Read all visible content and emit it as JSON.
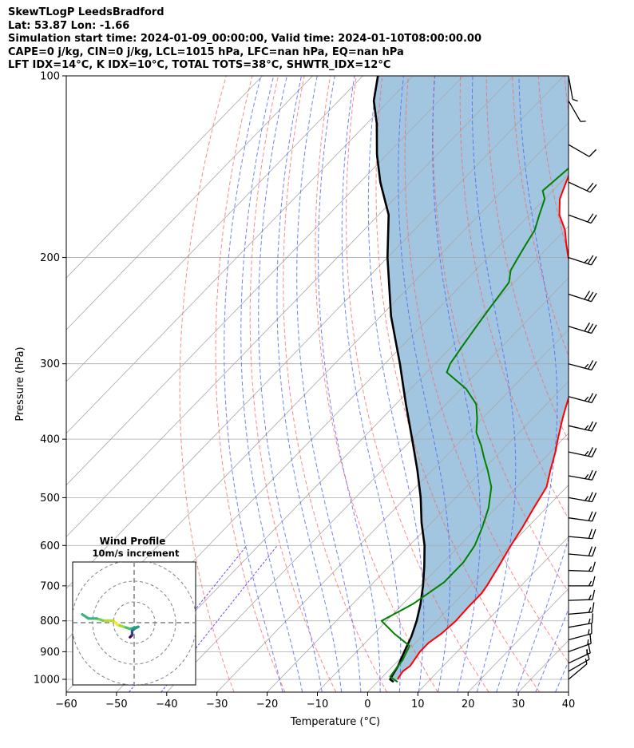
{
  "header": {
    "lines": [
      "SkewTLogP LeedsBradford",
      "Lat: 53.87   Lon: -1.66",
      "Simulation start time: 2024-01-09_00:00:00, Valid time: 2024-01-10T08:00:00.00",
      "CAPE=0 j/kg, CIN=0 j/kg, LCL=1015 hPa, LFC=nan hPa, EQ=nan hPa",
      "LFT IDX=14°C, K IDX=10°C, TOTAL TOTS=38°C, SHWTR_IDX=12°C"
    ]
  },
  "chart_data": {
    "type": "line",
    "subtype": "skew-T log-P",
    "xlabel": "Temperature (°C)",
    "ylabel": "Pressure (hPa)",
    "xlim": [
      -60,
      40
    ],
    "ylim": [
      1050,
      100
    ],
    "yscale": "log",
    "x_ticks": [
      -60,
      -50,
      -40,
      -30,
      -20,
      -10,
      0,
      10,
      20,
      30,
      40
    ],
    "y_ticks": [
      1000,
      900,
      800,
      700,
      600,
      500,
      400,
      300,
      200,
      100
    ],
    "grid": true,
    "colors": {
      "temperature": "#ff0000",
      "dewpoint": "#008000",
      "parcel": "#000000",
      "shade": "#a2c6e0",
      "isotherm": "#a8a8a8",
      "dry_adiabat": "#ff6060",
      "moist_adiabat": "#4b61ff",
      "mixing_ratio": "#7a3fff"
    },
    "series": [
      {
        "key": "temperature",
        "points": [
          [
            3.5,
            1000
          ],
          [
            3.3,
            990
          ],
          [
            3,
            970
          ],
          [
            3.4,
            950
          ],
          [
            2.6,
            900
          ],
          [
            2.6,
            870
          ],
          [
            3.4,
            840
          ],
          [
            3.8,
            800
          ],
          [
            3.6,
            760
          ],
          [
            3.6,
            720
          ],
          [
            3.2,
            700
          ],
          [
            1.8,
            650
          ],
          [
            0.2,
            600
          ],
          [
            -1,
            560
          ],
          [
            -2.5,
            520
          ],
          [
            -4,
            480
          ],
          [
            -6.5,
            450
          ],
          [
            -9,
            420
          ],
          [
            -11,
            400
          ],
          [
            -14,
            370
          ],
          [
            -15,
            360
          ],
          [
            -17,
            340
          ],
          [
            -19,
            320
          ],
          [
            -21,
            300
          ],
          [
            -25,
            280
          ],
          [
            -29,
            260
          ],
          [
            -32,
            245
          ],
          [
            -35,
            230
          ],
          [
            -39,
            215
          ],
          [
            -44,
            200
          ],
          [
            -47,
            190
          ],
          [
            -50,
            180
          ],
          [
            -54,
            170
          ],
          [
            -57,
            160
          ],
          [
            -59,
            150
          ],
          [
            -61,
            140
          ],
          [
            -61,
            130
          ],
          [
            -62,
            120
          ],
          [
            -63,
            115
          ],
          [
            -65,
            110
          ],
          [
            -68,
            105
          ],
          [
            -71,
            100
          ]
        ]
      },
      {
        "key": "dewpoint",
        "points": [
          [
            4,
            1010
          ],
          [
            1.5,
            990
          ],
          [
            1,
            950
          ],
          [
            0.8,
            930
          ],
          [
            -0.6,
            880
          ],
          [
            -6,
            840
          ],
          [
            -11,
            800
          ],
          [
            -8,
            750
          ],
          [
            -6,
            690
          ],
          [
            -6,
            660
          ],
          [
            -6,
            640
          ],
          [
            -7,
            600
          ],
          [
            -9,
            560
          ],
          [
            -11.5,
            520
          ],
          [
            -15,
            480
          ],
          [
            -19,
            450
          ],
          [
            -22,
            430
          ],
          [
            -25,
            410
          ],
          [
            -28.5,
            390
          ],
          [
            -31,
            370
          ],
          [
            -34,
            350
          ],
          [
            -39,
            330
          ],
          [
            -46,
            310
          ],
          [
            -47,
            300
          ],
          [
            -48,
            280
          ],
          [
            -49,
            260
          ],
          [
            -50,
            240
          ],
          [
            -51,
            220
          ],
          [
            -53,
            210
          ],
          [
            -54,
            200
          ],
          [
            -55,
            190
          ],
          [
            -56,
            180
          ],
          [
            -58,
            170
          ],
          [
            -60,
            160
          ],
          [
            -62,
            155
          ],
          [
            -61,
            140
          ],
          [
            -64,
            130
          ],
          [
            -68,
            120
          ],
          [
            -71,
            115
          ],
          [
            -73,
            110
          ],
          [
            -75,
            105
          ],
          [
            -78,
            100
          ]
        ]
      },
      {
        "key": "parcel",
        "points": [
          [
            3.2,
            1010
          ],
          [
            2,
            1000
          ],
          [
            1,
            950
          ],
          [
            -0.5,
            900
          ],
          [
            -2,
            850
          ],
          [
            -4,
            800
          ],
          [
            -6.5,
            750
          ],
          [
            -9.5,
            700
          ],
          [
            -13,
            650
          ],
          [
            -17,
            600
          ],
          [
            -22,
            550
          ],
          [
            -27,
            500
          ],
          [
            -33,
            450
          ],
          [
            -40,
            400
          ],
          [
            -48,
            350
          ],
          [
            -57,
            300
          ],
          [
            -68,
            250
          ],
          [
            -80,
            200
          ],
          [
            -88,
            170
          ],
          [
            -96,
            150
          ],
          [
            -102,
            135
          ],
          [
            -108,
            120
          ],
          [
            -113,
            110
          ],
          [
            -117,
            100
          ]
        ]
      }
    ],
    "wind_barbs": [
      {
        "p": 1000,
        "speed": 5,
        "dir": 230
      },
      {
        "p": 970,
        "speed": 10,
        "dir": 240
      },
      {
        "p": 940,
        "speed": 15,
        "dir": 245
      },
      {
        "p": 900,
        "speed": 15,
        "dir": 250
      },
      {
        "p": 860,
        "speed": 15,
        "dir": 255
      },
      {
        "p": 820,
        "speed": 15,
        "dir": 260
      },
      {
        "p": 780,
        "speed": 15,
        "dir": 265
      },
      {
        "p": 740,
        "speed": 15,
        "dir": 268
      },
      {
        "p": 700,
        "speed": 15,
        "dir": 270
      },
      {
        "p": 660,
        "speed": 15,
        "dir": 272
      },
      {
        "p": 620,
        "speed": 20,
        "dir": 275
      },
      {
        "p": 580,
        "speed": 20,
        "dir": 275
      },
      {
        "p": 540,
        "speed": 20,
        "dir": 278
      },
      {
        "p": 500,
        "speed": 25,
        "dir": 280
      },
      {
        "p": 460,
        "speed": 25,
        "dir": 280
      },
      {
        "p": 420,
        "speed": 25,
        "dir": 282
      },
      {
        "p": 380,
        "speed": 25,
        "dir": 283
      },
      {
        "p": 340,
        "speed": 25,
        "dir": 285
      },
      {
        "p": 300,
        "speed": 25,
        "dir": 285
      },
      {
        "p": 260,
        "speed": 30,
        "dir": 287
      },
      {
        "p": 230,
        "speed": 30,
        "dir": 288
      },
      {
        "p": 200,
        "speed": 25,
        "dir": 288
      },
      {
        "p": 170,
        "speed": 20,
        "dir": 290
      },
      {
        "p": 150,
        "speed": 20,
        "dir": 295
      },
      {
        "p": 130,
        "speed": 10,
        "dir": 300
      },
      {
        "p": 110,
        "speed": 5,
        "dir": 330
      },
      {
        "p": 100,
        "speed": 5,
        "dir": 350
      }
    ],
    "inset": {
      "title": "Wind Profile",
      "subtitle": "10m/s increment",
      "hodograph": [
        [
          -2,
          -7
        ],
        [
          -1,
          -6
        ],
        [
          -1,
          -4
        ],
        [
          0,
          -3
        ],
        [
          2,
          -2
        ],
        [
          -2,
          -3
        ],
        [
          -5,
          -2
        ],
        [
          -8,
          -1
        ],
        [
          -10,
          1
        ],
        [
          -15,
          1
        ],
        [
          -18,
          2
        ],
        [
          -22,
          2
        ],
        [
          -25,
          4
        ]
      ]
    }
  }
}
